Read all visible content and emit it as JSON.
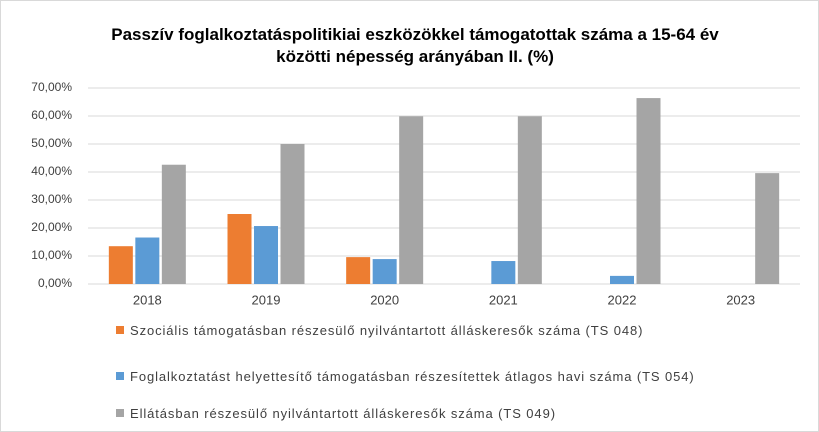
{
  "chart_data": {
    "type": "bar",
    "title": "Passzív foglalkoztatáspolitikiai eszközökkel támogatottak száma a 15-64 év közötti népesség arányában II. (%)",
    "categories": [
      "2018",
      "2019",
      "2020",
      "2021",
      "2022",
      "2023"
    ],
    "series": [
      {
        "name": "Szociális támogatásban részesülő nyilvántartott álláskeresők száma (TS 048)",
        "color": "#ed7d31",
        "values": [
          13.5,
          25,
          9.6,
          null,
          null,
          null
        ]
      },
      {
        "name": "Foglalkoztatást helyettesítő támogatásban részesítettek átlagos havi száma (TS 054)",
        "color": "#5b9bd5",
        "values": [
          16.6,
          20.7,
          8.9,
          8.2,
          2.9,
          null
        ]
      },
      {
        "name": "Ellátásban részesülő nyilvántartott álláskeresők száma (TS 049)",
        "color": "#a5a5a5",
        "values": [
          42.6,
          50,
          59.9,
          59.9,
          66.4,
          39.6
        ]
      }
    ],
    "ylim": [
      0,
      70
    ],
    "yticks": [
      {
        "value": 0,
        "label": "0,00%"
      },
      {
        "value": 10,
        "label": "10,00%"
      },
      {
        "value": 20,
        "label": "20,00%"
      },
      {
        "value": 30,
        "label": "30,00%"
      },
      {
        "value": 40,
        "label": "40,00%"
      },
      {
        "value": 50,
        "label": "50,00%"
      },
      {
        "value": 60,
        "label": "60,00%"
      },
      {
        "value": 70,
        "label": "70,00%"
      }
    ],
    "grid": true
  }
}
